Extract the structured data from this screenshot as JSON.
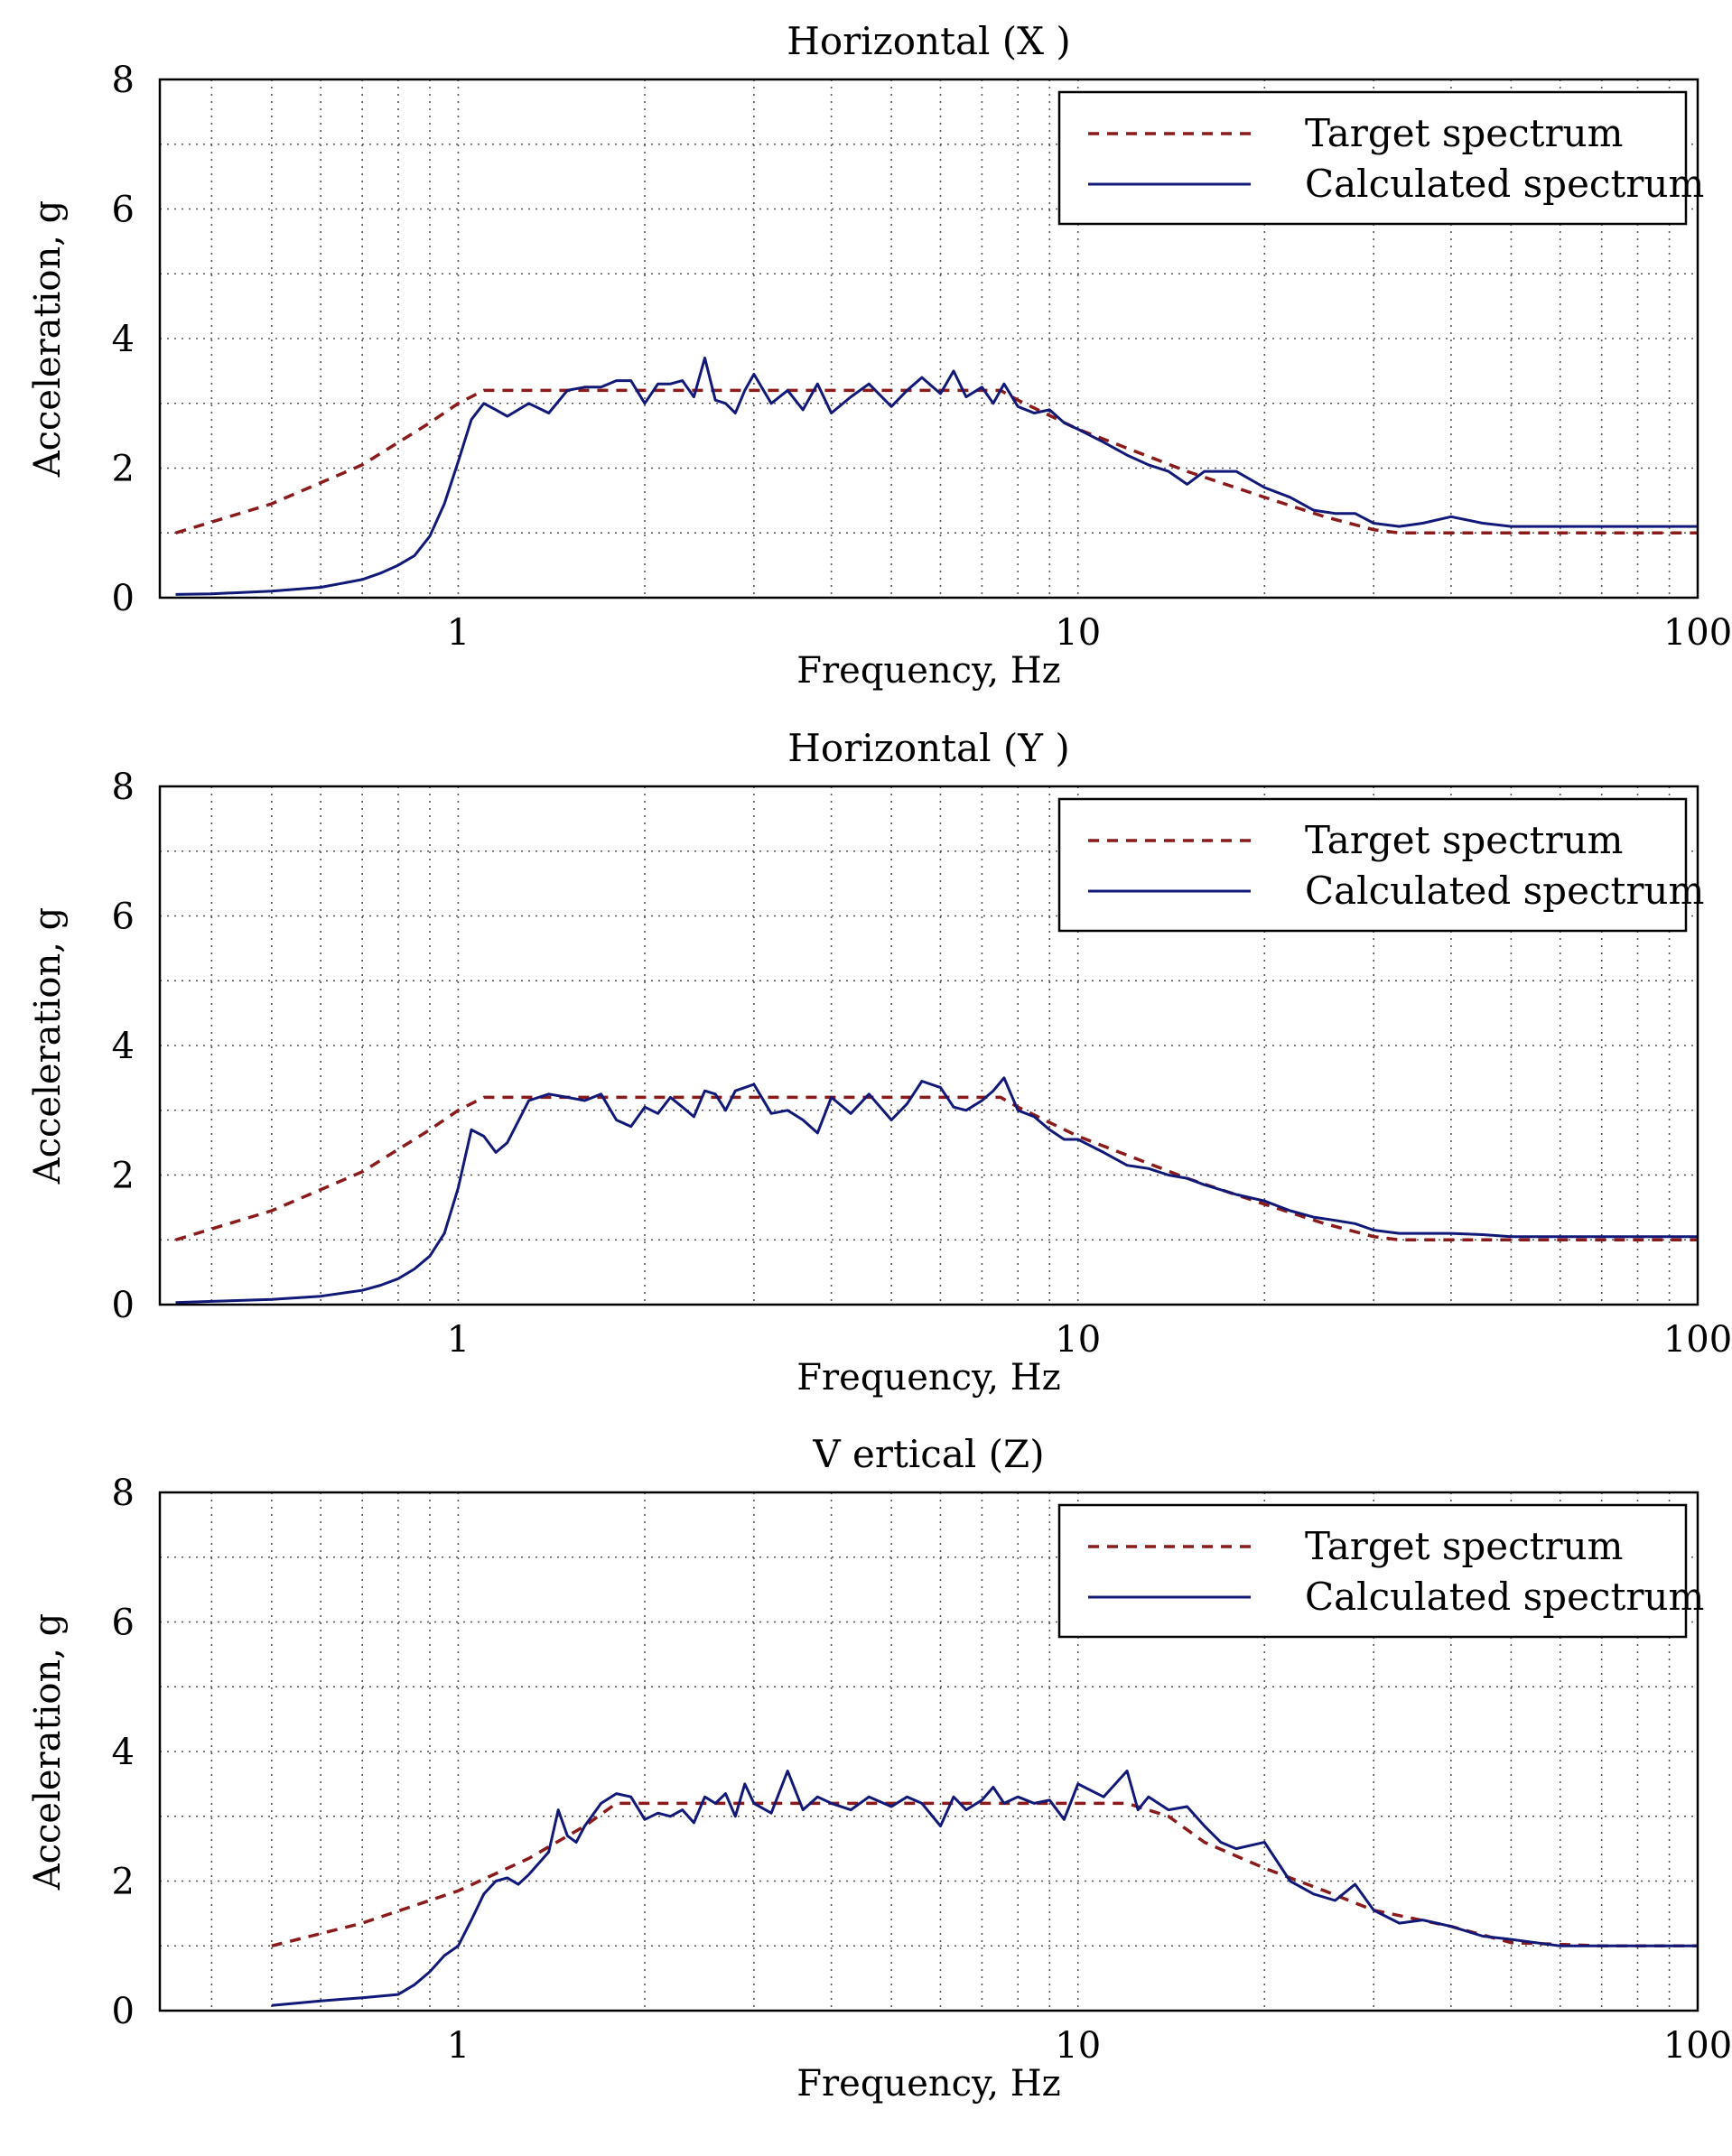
{
  "colors": {
    "target": "#8b1a1a",
    "calculated": "#101878",
    "grid": "#555555",
    "axes": "#000000"
  },
  "chart_data": [
    {
      "type": "line",
      "title": "Horizontal (X )",
      "xlabel": "Frequency, Hz",
      "ylabel": "Acceleration, g",
      "xscale": "log",
      "xlim": [
        0.33,
        100
      ],
      "ylim": [
        0,
        8
      ],
      "xticks": [
        1,
        10,
        100
      ],
      "xtick_labels": [
        "1",
        "10",
        "100"
      ],
      "yticks": [
        0,
        2,
        4,
        6,
        8
      ],
      "ytick_labels": [
        "0",
        "2",
        "4",
        "6",
        "8"
      ],
      "grid": true,
      "legend_position": "top-right",
      "series": [
        {
          "name": "Target spectrum",
          "style": "dashed",
          "x": [
            0.35,
            0.5,
            0.7,
            0.9,
            1.0,
            1.1,
            2,
            3,
            4,
            5,
            6,
            7,
            7.5,
            8,
            10,
            15,
            20,
            25,
            30,
            33,
            40,
            50,
            70,
            100
          ],
          "y": [
            1.0,
            1.45,
            2.05,
            2.7,
            3.0,
            3.2,
            3.2,
            3.2,
            3.2,
            3.2,
            3.2,
            3.2,
            3.2,
            3.05,
            2.6,
            1.95,
            1.55,
            1.25,
            1.05,
            1.0,
            1.0,
            1.0,
            1.0,
            1.0
          ]
        },
        {
          "name": "Calculated spectrum",
          "style": "solid",
          "x": [
            0.35,
            0.4,
            0.5,
            0.6,
            0.7,
            0.75,
            0.8,
            0.85,
            0.9,
            0.95,
            1.0,
            1.05,
            1.1,
            1.15,
            1.2,
            1.3,
            1.4,
            1.5,
            1.6,
            1.7,
            1.8,
            1.9,
            2.0,
            2.1,
            2.2,
            2.3,
            2.4,
            2.5,
            2.6,
            2.7,
            2.8,
            2.9,
            3.0,
            3.2,
            3.4,
            3.6,
            3.8,
            4.0,
            4.3,
            4.6,
            5.0,
            5.3,
            5.6,
            6.0,
            6.3,
            6.6,
            7.0,
            7.3,
            7.6,
            8.0,
            8.5,
            9.0,
            9.5,
            10,
            11,
            12,
            13,
            14,
            15,
            16,
            18,
            20,
            22,
            24,
            26,
            28,
            30,
            33,
            36,
            40,
            45,
            50,
            60,
            70,
            80,
            100
          ],
          "y": [
            0.05,
            0.06,
            0.1,
            0.16,
            0.28,
            0.38,
            0.5,
            0.65,
            0.95,
            1.45,
            2.1,
            2.75,
            3.0,
            2.9,
            2.8,
            3.0,
            2.85,
            3.2,
            3.25,
            3.25,
            3.35,
            3.35,
            3.0,
            3.3,
            3.3,
            3.35,
            3.1,
            3.7,
            3.05,
            3.0,
            2.85,
            3.2,
            3.45,
            3.0,
            3.2,
            2.9,
            3.3,
            2.85,
            3.1,
            3.3,
            2.95,
            3.2,
            3.4,
            3.15,
            3.5,
            3.1,
            3.25,
            3.0,
            3.3,
            2.95,
            2.85,
            2.9,
            2.7,
            2.6,
            2.4,
            2.2,
            2.05,
            1.95,
            1.75,
            1.95,
            1.95,
            1.7,
            1.55,
            1.35,
            1.3,
            1.3,
            1.15,
            1.1,
            1.15,
            1.25,
            1.15,
            1.1,
            1.1,
            1.1,
            1.1,
            1.1
          ]
        }
      ]
    },
    {
      "type": "line",
      "title": "Horizontal (Y )",
      "xlabel": "Frequency, Hz",
      "ylabel": "Acceleration, g",
      "xscale": "log",
      "xlim": [
        0.33,
        100
      ],
      "ylim": [
        0,
        8
      ],
      "xticks": [
        1,
        10,
        100
      ],
      "xtick_labels": [
        "1",
        "10",
        "100"
      ],
      "yticks": [
        0,
        2,
        4,
        6,
        8
      ],
      "ytick_labels": [
        "0",
        "2",
        "4",
        "6",
        "8"
      ],
      "grid": true,
      "legend_position": "top-right",
      "series": [
        {
          "name": "Target spectrum",
          "style": "dashed",
          "x": [
            0.35,
            0.5,
            0.7,
            0.9,
            1.0,
            1.1,
            2,
            3,
            4,
            5,
            6,
            7,
            7.5,
            8,
            10,
            15,
            20,
            25,
            30,
            33,
            40,
            50,
            70,
            100
          ],
          "y": [
            1.0,
            1.45,
            2.05,
            2.7,
            3.0,
            3.2,
            3.2,
            3.2,
            3.2,
            3.2,
            3.2,
            3.2,
            3.2,
            3.05,
            2.6,
            1.95,
            1.55,
            1.25,
            1.05,
            1.0,
            1.0,
            1.0,
            1.0,
            1.0
          ]
        },
        {
          "name": "Calculated spectrum",
          "style": "solid",
          "x": [
            0.35,
            0.4,
            0.5,
            0.6,
            0.7,
            0.75,
            0.8,
            0.85,
            0.9,
            0.95,
            1.0,
            1.05,
            1.1,
            1.15,
            1.2,
            1.3,
            1.4,
            1.5,
            1.6,
            1.7,
            1.8,
            1.9,
            2.0,
            2.1,
            2.2,
            2.3,
            2.4,
            2.5,
            2.6,
            2.7,
            2.8,
            2.9,
            3.0,
            3.2,
            3.4,
            3.6,
            3.8,
            4.0,
            4.3,
            4.6,
            5.0,
            5.3,
            5.6,
            6.0,
            6.3,
            6.6,
            7.0,
            7.3,
            7.6,
            8.0,
            8.5,
            9.0,
            9.5,
            10,
            11,
            12,
            13,
            14,
            15,
            16,
            18,
            20,
            22,
            24,
            26,
            28,
            30,
            33,
            36,
            40,
            45,
            50,
            60,
            70,
            80,
            100
          ],
          "y": [
            0.03,
            0.05,
            0.08,
            0.13,
            0.22,
            0.3,
            0.4,
            0.55,
            0.75,
            1.1,
            1.8,
            2.7,
            2.6,
            2.35,
            2.5,
            3.15,
            3.25,
            3.2,
            3.15,
            3.25,
            2.85,
            2.75,
            3.05,
            2.95,
            3.2,
            3.05,
            2.9,
            3.3,
            3.25,
            3.0,
            3.3,
            3.35,
            3.4,
            2.95,
            3.0,
            2.85,
            2.65,
            3.2,
            2.95,
            3.25,
            2.85,
            3.1,
            3.45,
            3.35,
            3.05,
            3.0,
            3.15,
            3.3,
            3.5,
            3.0,
            2.9,
            2.7,
            2.55,
            2.55,
            2.35,
            2.15,
            2.1,
            2.0,
            1.95,
            1.85,
            1.7,
            1.6,
            1.45,
            1.35,
            1.3,
            1.25,
            1.15,
            1.1,
            1.1,
            1.1,
            1.08,
            1.05,
            1.05,
            1.05,
            1.05,
            1.05
          ]
        }
      ]
    },
    {
      "type": "line",
      "title": "V ertical (Z)",
      "xlabel": "Frequency, Hz",
      "ylabel": "Acceleration, g",
      "xscale": "log",
      "xlim": [
        0.33,
        100
      ],
      "ylim": [
        0,
        8
      ],
      "xticks": [
        1,
        10,
        100
      ],
      "xtick_labels": [
        "1",
        "10",
        "100"
      ],
      "yticks": [
        0,
        2,
        4,
        6,
        8
      ],
      "ytick_labels": [
        "0",
        "2",
        "4",
        "6",
        "8"
      ],
      "grid": true,
      "legend_position": "top-right",
      "series": [
        {
          "name": "Target spectrum",
          "style": "dashed",
          "x": [
            0.5,
            0.7,
            1.0,
            1.3,
            1.6,
            1.8,
            3,
            5,
            8,
            10,
            12,
            14,
            16,
            20,
            25,
            30,
            40,
            50,
            70,
            100
          ],
          "y": [
            1.0,
            1.35,
            1.85,
            2.35,
            2.85,
            3.2,
            3.2,
            3.2,
            3.2,
            3.2,
            3.2,
            3.0,
            2.6,
            2.2,
            1.85,
            1.55,
            1.3,
            1.05,
            1.0,
            1.0
          ]
        },
        {
          "name": "Calculated spectrum",
          "style": "solid",
          "x": [
            0.5,
            0.6,
            0.7,
            0.8,
            0.85,
            0.9,
            0.95,
            1.0,
            1.05,
            1.1,
            1.15,
            1.2,
            1.25,
            1.3,
            1.4,
            1.45,
            1.5,
            1.55,
            1.6,
            1.7,
            1.8,
            1.9,
            2.0,
            2.1,
            2.2,
            2.3,
            2.4,
            2.5,
            2.6,
            2.7,
            2.8,
            2.9,
            3.0,
            3.2,
            3.4,
            3.6,
            3.8,
            4.0,
            4.3,
            4.6,
            5.0,
            5.3,
            5.6,
            6.0,
            6.3,
            6.6,
            7.0,
            7.3,
            7.6,
            8.0,
            8.5,
            9.0,
            9.5,
            10,
            11,
            12,
            12.5,
            13,
            14,
            15,
            16,
            17,
            18,
            20,
            22,
            24,
            26,
            28,
            30,
            33,
            36,
            40,
            45,
            50,
            60,
            70,
            80,
            100
          ],
          "y": [
            0.08,
            0.15,
            0.2,
            0.25,
            0.4,
            0.6,
            0.85,
            1.0,
            1.4,
            1.8,
            2.0,
            2.05,
            1.95,
            2.1,
            2.45,
            3.1,
            2.7,
            2.6,
            2.85,
            3.2,
            3.35,
            3.3,
            2.95,
            3.05,
            3.0,
            3.1,
            2.9,
            3.3,
            3.2,
            3.35,
            3.0,
            3.5,
            3.2,
            3.05,
            3.7,
            3.1,
            3.3,
            3.2,
            3.1,
            3.3,
            3.15,
            3.3,
            3.2,
            2.85,
            3.3,
            3.1,
            3.25,
            3.45,
            3.2,
            3.3,
            3.2,
            3.25,
            2.95,
            3.5,
            3.3,
            3.7,
            3.1,
            3.3,
            3.1,
            3.15,
            2.85,
            2.6,
            2.5,
            2.6,
            2.0,
            1.8,
            1.7,
            1.95,
            1.55,
            1.35,
            1.4,
            1.3,
            1.15,
            1.1,
            1.0,
            1.0,
            1.0,
            1.0
          ]
        }
      ]
    }
  ]
}
